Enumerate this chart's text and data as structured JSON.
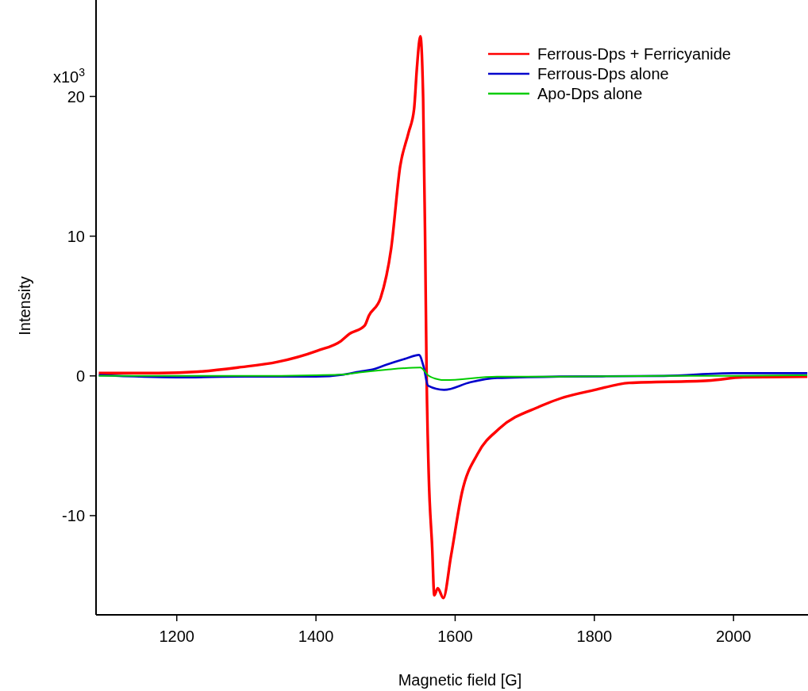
{
  "chart_data": {
    "type": "line",
    "xlabel": "Magnetic field [G]",
    "ylabel": "Intensity",
    "xlim": [
      1084,
      2107
    ],
    "xticks": [
      1200,
      1400,
      1600,
      1800,
      2000
    ],
    "ylim": [
      -17.1,
      26.9
    ],
    "yticks": [
      -10,
      0,
      10,
      20
    ],
    "annotations": [
      "x10$^{3}$"
    ],
    "grid": false,
    "legend": "top right",
    "line_style": "solid",
    "marker": "none",
    "series": [
      {
        "name": "Ferrous-Dps + Ferricyanide",
        "color": "#ff0000",
        "x": [
          1088,
          1174,
          1231,
          1288,
          1345,
          1402,
          1436,
          1448,
          1470,
          1476,
          1493,
          1508,
          1521,
          1533,
          1541,
          1545,
          1550,
          1554,
          1557,
          1559,
          1562,
          1567,
          1570,
          1575,
          1583,
          1594,
          1610,
          1632,
          1664,
          1721,
          1752,
          1801,
          1850,
          1964,
          2014,
          2106
        ],
        "values": [
          0.2,
          0.2,
          0.3,
          0.6,
          1.0,
          1.8,
          2.5,
          3.0,
          3.6,
          4.3,
          5.6,
          9.1,
          15.0,
          17.4,
          19.1,
          22.0,
          24.3,
          19.9,
          9.1,
          0,
          -7.0,
          -12.3,
          -15.7,
          -15.2,
          -15.9,
          -12.9,
          -8.3,
          -5.6,
          -3.75,
          -2.2,
          -1.6,
          -1.0,
          -0.5,
          -0.34,
          -0.1,
          -0.06
        ]
      },
      {
        "name": "Ferrous-Dps alone",
        "color": "#0000cc",
        "x": [
          1088,
          1200,
          1300,
          1400,
          1440,
          1462,
          1481,
          1501,
          1530,
          1548,
          1555,
          1561,
          1584,
          1622,
          1660,
          1750,
          1900,
          2000,
          2106
        ],
        "values": [
          0.05,
          -0.1,
          -0.05,
          -0.05,
          0.1,
          0.3,
          0.45,
          0.8,
          1.25,
          1.5,
          0.6,
          -0.7,
          -1.0,
          -0.45,
          -0.15,
          -0.05,
          0,
          0.2,
          0.2
        ]
      },
      {
        "name": "Apo-Dps alone",
        "color": "#00cc00",
        "x": [
          1088,
          1200,
          1300,
          1400,
          1440,
          1462,
          1501,
          1550,
          1561,
          1576,
          1584,
          1660,
          1750,
          1900,
          2000,
          2106
        ],
        "values": [
          0,
          0,
          0,
          0.05,
          0.1,
          0.25,
          0.45,
          0.6,
          0.05,
          -0.25,
          -0.3,
          -0.05,
          -0.05,
          0,
          0,
          0.05
        ]
      }
    ]
  }
}
